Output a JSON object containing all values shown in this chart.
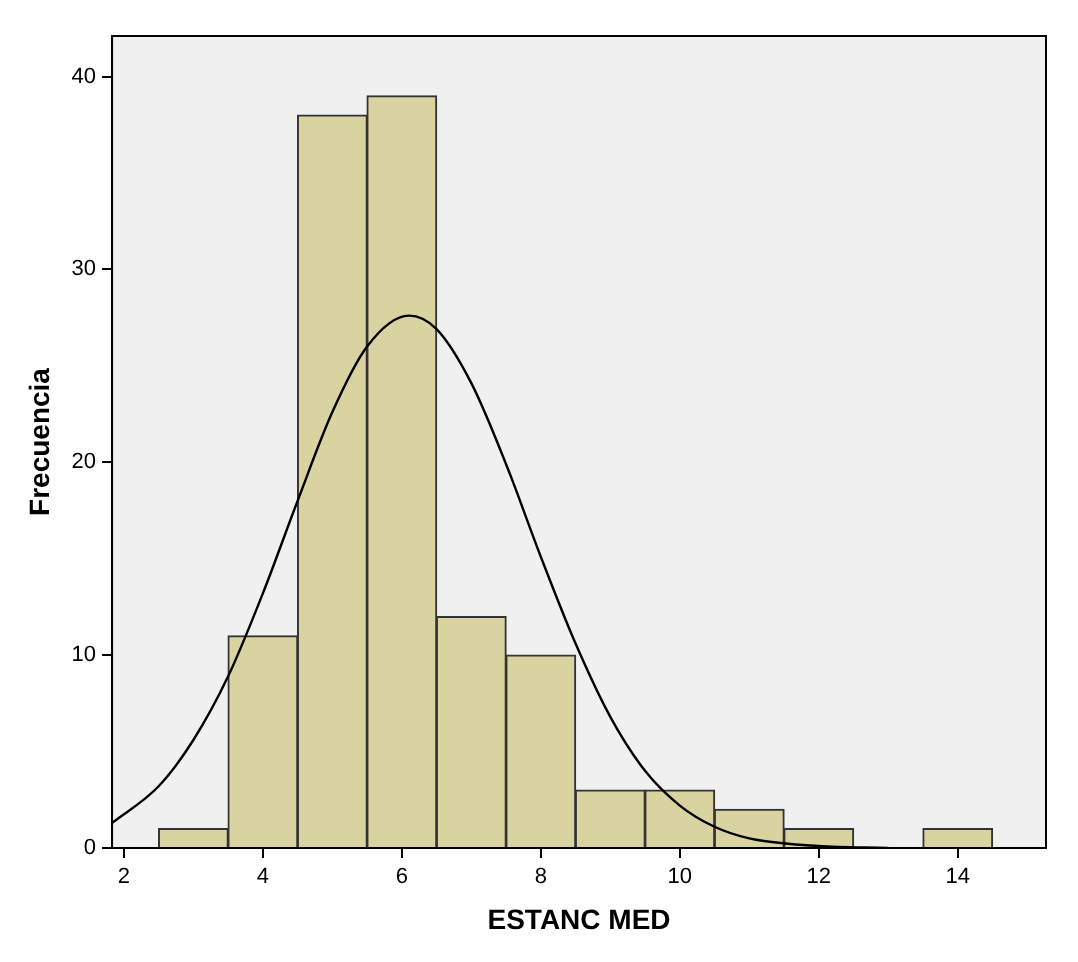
{
  "chart_data": {
    "type": "histogram",
    "xlabel": "ESTANC MED",
    "ylabel": "Frecuencia",
    "bins": [
      2.5,
      3.5,
      4.5,
      5.5,
      6.5,
      7.5,
      8.5,
      9.5,
      10.5,
      11.5,
      12.5,
      13.5,
      14.5
    ],
    "values": [
      1,
      11,
      38,
      39,
      12,
      10,
      3,
      3,
      2,
      1,
      0,
      1
    ],
    "color": "#d8d3a0",
    "series": [
      {
        "type": "line",
        "color": "#000000",
        "x": [
          1.83,
          2.5,
          3,
          3.5,
          4,
          4.5,
          5,
          5.5,
          6.1,
          6.5,
          7,
          7.5,
          8,
          8.5,
          9,
          9.5,
          10,
          10.5,
          11,
          12,
          13
        ],
        "values": [
          1.3,
          3.2,
          5.6,
          8.9,
          13.2,
          18,
          22.6,
          26,
          27.6,
          26.9,
          24.1,
          19.9,
          15.1,
          10.6,
          6.8,
          4,
          2.2,
          1.1,
          0.5,
          0.1,
          0
        ]
      }
    ],
    "xlim": [
      1.83,
      15.27
    ],
    "xticks": [
      2,
      4,
      6,
      8,
      10,
      12,
      14
    ],
    "ylim": [
      0,
      42.1
    ],
    "yticks": [
      0,
      10,
      20,
      30,
      40
    ],
    "grid": false,
    "legend": false,
    "marker": "none"
  }
}
